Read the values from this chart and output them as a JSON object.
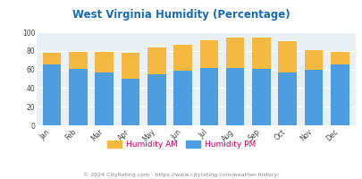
{
  "title": "West Virginia Humidity (Percentage)",
  "months": [
    "Jan",
    "Feb",
    "Mar",
    "Apr",
    "May",
    "Jun",
    "Jul",
    "Aug",
    "Sep",
    "Oct",
    "Nov",
    "Dec"
  ],
  "humidity_pm": [
    65,
    61,
    57,
    50,
    55,
    59,
    62,
    62,
    61,
    57,
    60,
    65
  ],
  "humidity_am": [
    13,
    18,
    22,
    28,
    29,
    28,
    29,
    32,
    33,
    33,
    21,
    14
  ],
  "color_pm": "#4d9de0",
  "color_am": "#f5b942",
  "bg_color": "#e8f0f5",
  "title_color": "#1a6ab5",
  "ylim": [
    0,
    100
  ],
  "yticks": [
    0,
    20,
    40,
    60,
    80,
    100
  ],
  "footer": "© 2024 CityRating.com - https://www.cityrating.com/weather-history/",
  "legend_am": "Humidity AM",
  "legend_pm": "Humidity PM"
}
